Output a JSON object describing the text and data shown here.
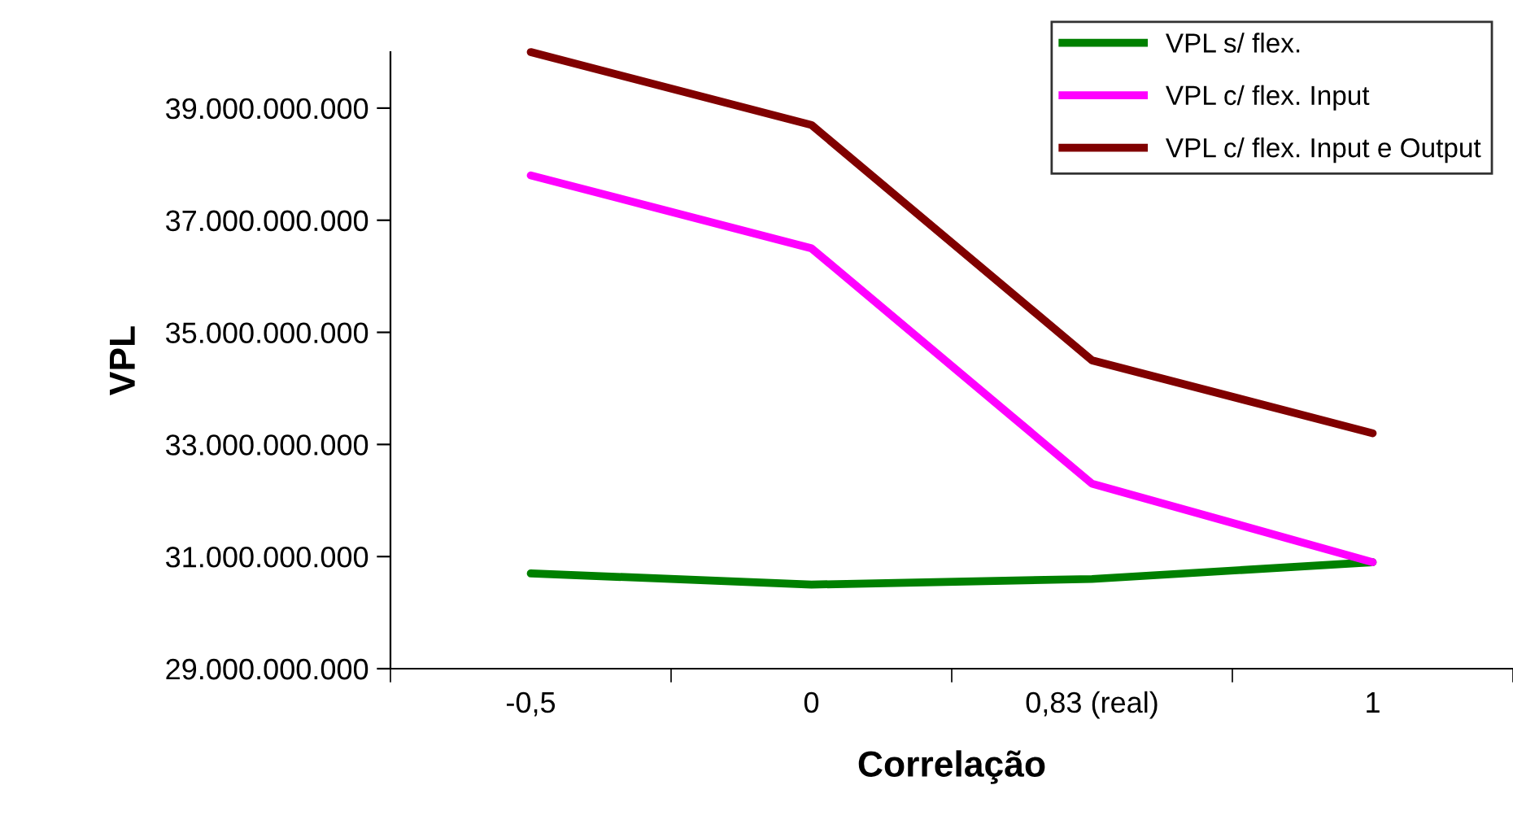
{
  "chart_data": {
    "type": "line",
    "xlabel": "Correlação",
    "ylabel": "VPL",
    "categories": [
      "-0,5",
      "0",
      "0,83 (real)",
      "1"
    ],
    "ylim": [
      29000000000,
      40000000000
    ],
    "yticks": [
      {
        "value": 29000000000,
        "label": "29.000.000.000"
      },
      {
        "value": 31000000000,
        "label": "31.000.000.000"
      },
      {
        "value": 33000000000,
        "label": "33.000.000.000"
      },
      {
        "value": 35000000000,
        "label": "35.000.000.000"
      },
      {
        "value": 37000000000,
        "label": "37.000.000.000"
      },
      {
        "value": 39000000000,
        "label": "39.000.000.000"
      }
    ],
    "series": [
      {
        "name": "VPL s/ flex.",
        "color": "#008000",
        "values": [
          30700000000,
          30500000000,
          30600000000,
          30900000000
        ]
      },
      {
        "name": "VPL c/ flex. Input",
        "color": "#ff00ff",
        "values": [
          37800000000,
          36500000000,
          32300000000,
          30900000000
        ]
      },
      {
        "name": "VPL c/ flex. Input e Output",
        "color": "#800000",
        "values": [
          40000000000,
          38700000000,
          34500000000,
          33200000000
        ]
      }
    ],
    "grid": false,
    "legend": "top right",
    "marker": "none",
    "line_style": "solid"
  }
}
